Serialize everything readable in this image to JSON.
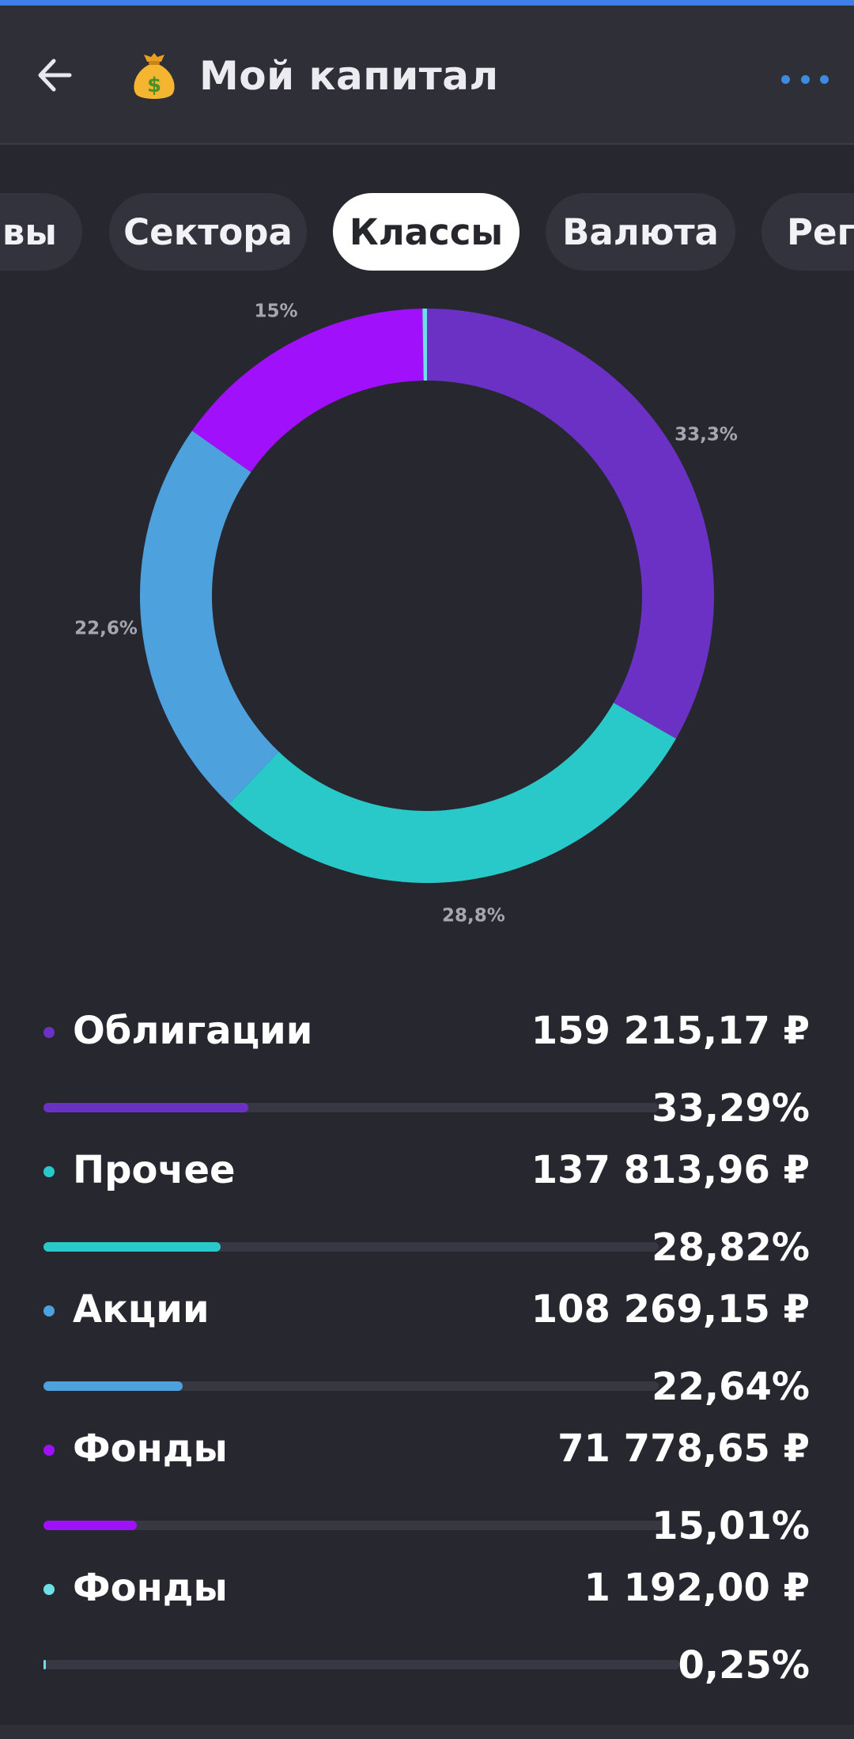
{
  "header": {
    "title": "Мой капитал",
    "back_icon": "arrow-left-icon",
    "title_icon": "money-bag-icon",
    "more_icon": "more-dots-icon",
    "accent": "#3d8be0"
  },
  "tabs": [
    {
      "label": "Активы",
      "visible_text": "ивы",
      "active": false
    },
    {
      "label": "Сектора",
      "active": false
    },
    {
      "label": "Классы",
      "active": true
    },
    {
      "label": "Валюта",
      "active": false
    },
    {
      "label": "Регионы",
      "visible_text": "Реги",
      "active": false
    }
  ],
  "chart_data": {
    "type": "pie",
    "donut": true,
    "series": [
      {
        "name": "Облигации",
        "value": 33.29,
        "label": "33,3%",
        "color": "#6a31c4"
      },
      {
        "name": "Прочее",
        "value": 28.82,
        "label": "28,8%",
        "color": "#2ac9c9"
      },
      {
        "name": "Акции",
        "value": 22.64,
        "label": "22,6%",
        "color": "#4da1dd"
      },
      {
        "name": "Фонды",
        "value": 15.01,
        "label": "15%",
        "color": "#a010fb"
      },
      {
        "name": "Фонды",
        "value": 0.25,
        "label": "",
        "color": "#6fdfe6"
      }
    ]
  },
  "legend": [
    {
      "name": "Облигации",
      "amount": "159 215,17 ₽",
      "percent": "33,29%",
      "share": 0.3329,
      "color": "#6a31c4"
    },
    {
      "name": "Прочее",
      "amount": "137 813,96 ₽",
      "percent": "28,82%",
      "share": 0.2882,
      "color": "#2ac9c9"
    },
    {
      "name": "Акции",
      "amount": "108 269,15 ₽",
      "percent": "22,64%",
      "share": 0.2264,
      "color": "#4da1dd"
    },
    {
      "name": "Фонды",
      "amount": "71 778,65 ₽",
      "percent": "15,01%",
      "share": 0.1501,
      "color": "#a010fb"
    },
    {
      "name": "Фонды",
      "amount": "1 192,00 ₽",
      "percent": "0,25%",
      "share": 0.0025,
      "color": "#6fdfe6"
    }
  ]
}
